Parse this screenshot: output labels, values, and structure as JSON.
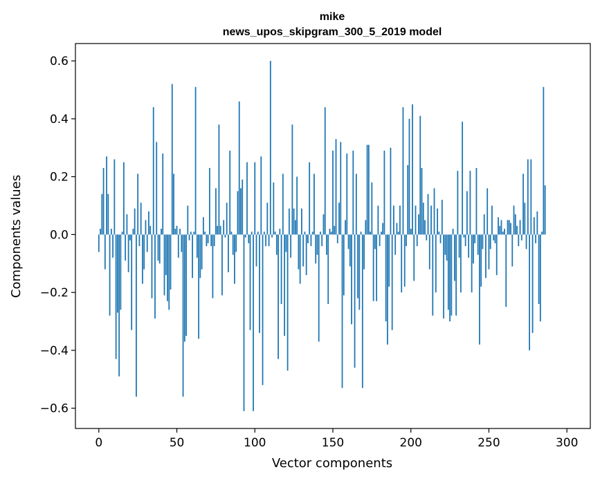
{
  "chart_data": {
    "type": "bar",
    "title_line1": "mike",
    "title_line2": "news_upos_skipgram_300_5_2019 model",
    "xlabel": "Vector components",
    "ylabel": "Components values",
    "xlim": [
      -15,
      315
    ],
    "ylim": [
      -0.67,
      0.66
    ],
    "xticks": [
      0,
      50,
      100,
      150,
      200,
      250,
      300
    ],
    "xtick_labels": [
      "0",
      "50",
      "100",
      "150",
      "200",
      "250",
      "300"
    ],
    "yticks": [
      -0.6,
      -0.4,
      -0.2,
      0.0,
      0.2,
      0.4,
      0.6
    ],
    "ytick_labels": [
      "−0.6",
      "−0.4",
      "−0.2",
      "0.0",
      "0.2",
      "0.4",
      "0.6"
    ],
    "grid": false,
    "bar_color": "#1f77b4",
    "values": [
      -0.06,
      0.02,
      0.14,
      0.23,
      -0.12,
      0.27,
      0.14,
      -0.28,
      0.02,
      -0.08,
      0.26,
      -0.43,
      -0.27,
      -0.49,
      -0.26,
      0.01,
      0.25,
      -0.09,
      0.07,
      -0.13,
      -0.02,
      -0.33,
      0.02,
      0.09,
      -0.56,
      0.21,
      -0.04,
      0.11,
      -0.17,
      -0.12,
      0.05,
      -0.06,
      0.08,
      0.03,
      -0.22,
      0.44,
      -0.29,
      0.32,
      -0.09,
      -0.1,
      0.02,
      0.28,
      -0.21,
      -0.14,
      -0.23,
      -0.26,
      -0.19,
      0.52,
      0.21,
      0.02,
      0.03,
      -0.08,
      0.02,
      -0.06,
      -0.56,
      -0.37,
      -0.35,
      0.1,
      -0.02,
      0.01,
      -0.15,
      0.01,
      0.51,
      -0.08,
      -0.36,
      -0.15,
      -0.12,
      0.06,
      0.01,
      -0.04,
      -0.03,
      0.23,
      -0.04,
      -0.22,
      -0.04,
      0.16,
      0.03,
      0.38,
      0.03,
      -0.21,
      0.05,
      -0.01,
      0.11,
      -0.13,
      0.29,
      0.01,
      -0.07,
      -0.17,
      -0.06,
      0.15,
      0.46,
      0.16,
      0.19,
      -0.61,
      -0.01,
      0.25,
      -0.03,
      -0.33,
      0.01,
      -0.61,
      0.25,
      -0.11,
      0.01,
      -0.34,
      0.27,
      -0.52,
      0.01,
      -0.04,
      0.11,
      -0.04,
      0.6,
      -0.01,
      0.18,
      0.01,
      -0.07,
      -0.43,
      0.02,
      -0.24,
      0.21,
      -0.35,
      -0.06,
      -0.47,
      0.09,
      -0.08,
      0.38,
      0.09,
      0.05,
      0.2,
      -0.12,
      -0.17,
      0.09,
      -0.11,
      0.01,
      -0.14,
      -0.03,
      0.25,
      -0.04,
      0.01,
      0.21,
      -0.1,
      -0.07,
      -0.37,
      0.01,
      -0.04,
      0.07,
      0.44,
      -0.07,
      -0.24,
      0.02,
      0.01,
      0.29,
      0.03,
      0.33,
      -0.03,
      0.11,
      0.32,
      -0.53,
      -0.21,
      0.05,
      0.28,
      -0.05,
      -0.11,
      -0.31,
      0.29,
      -0.46,
      0.21,
      -0.22,
      -0.26,
      0.01,
      -0.53,
      -0.12,
      0.05,
      0.31,
      0.31,
      0.01,
      0.18,
      -0.23,
      -0.05,
      -0.23,
      0.1,
      -0.04,
      0.01,
      0.04,
      0.29,
      -0.3,
      -0.38,
      -0.18,
      0.3,
      -0.33,
      0.1,
      -0.07,
      0.04,
      0.01,
      0.1,
      -0.2,
      0.44,
      -0.18,
      -0.04,
      0.24,
      0.4,
      0.02,
      0.45,
      -0.16,
      0.1,
      -0.04,
      0.07,
      0.41,
      0.23,
      0.11,
      0.05,
      -0.02,
      0.14,
      -0.12,
      0.1,
      -0.28,
      0.16,
      -0.2,
      0.09,
      0.01,
      -0.03,
      0.12,
      -0.29,
      -0.07,
      -0.09,
      -0.26,
      -0.3,
      -0.28,
      0.02,
      -0.16,
      -0.28,
      0.22,
      -0.08,
      -0.2,
      0.39,
      -0.01,
      -0.04,
      0.15,
      -0.08,
      0.22,
      -0.2,
      -0.1,
      -0.03,
      0.23,
      -0.07,
      -0.38,
      -0.18,
      -0.05,
      0.07,
      -0.15,
      0.16,
      -0.12,
      -0.05,
      0.1,
      -0.02,
      -0.03,
      -0.14,
      0.06,
      0.03,
      0.05,
      0.01,
      0.02,
      -0.25,
      0.05,
      0.05,
      0.04,
      -0.11,
      0.1,
      0.07,
      0.03,
      -0.04,
      0.05,
      -0.02,
      0.21,
      0.11,
      -0.05,
      0.26,
      -0.4,
      0.26,
      -0.34,
      0.06,
      -0.03,
      0.08,
      -0.24,
      -0.3,
      0.01,
      0.51,
      0.17
    ]
  }
}
